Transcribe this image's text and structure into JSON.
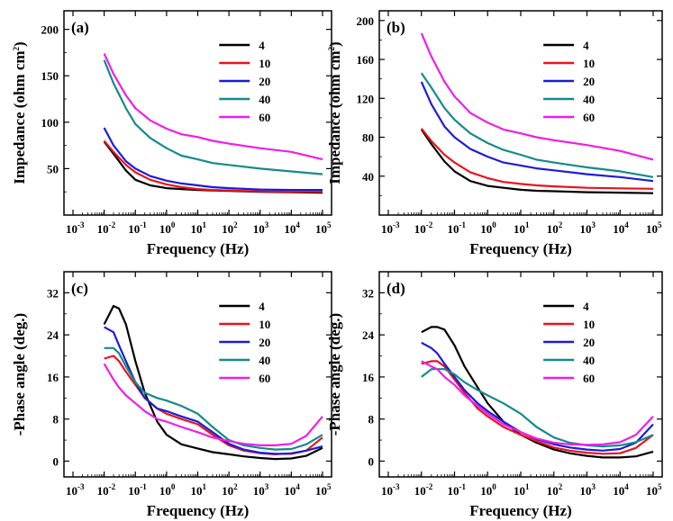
{
  "chart_data": [
    {
      "type": "line",
      "panel_label": "(a)",
      "xlabel": "Frequency (Hz)",
      "ylabel": "Impedance (ohm cm",
      "ylabel_sup": "2",
      "ylabel_close": ")",
      "x_scale": "log",
      "xlim": [
        0.001,
        100000
      ],
      "ylim": [
        0,
        220
      ],
      "x_ticks": [
        {
          "base": "10",
          "exp": "-3"
        },
        {
          "base": "10",
          "exp": "-2"
        },
        {
          "base": "10",
          "exp": "-1"
        },
        {
          "base": "10",
          "exp": "0"
        },
        {
          "base": "10",
          "exp": "1"
        },
        {
          "base": "10",
          "exp": "2"
        },
        {
          "base": "10",
          "exp": "3"
        },
        {
          "base": "10",
          "exp": "4"
        },
        {
          "base": "10",
          "exp": "5"
        }
      ],
      "y_ticks": [
        50,
        100,
        150,
        200
      ],
      "legend_position": "top-right",
      "x": [
        0.01,
        0.02,
        0.05,
        0.1,
        0.3,
        1,
        3,
        10,
        30,
        100,
        1000,
        10000,
        100000
      ],
      "series": [
        {
          "name": "4",
          "color": "#000000",
          "values": [
            79,
            66,
            48,
            38,
            32,
            29,
            28,
            27,
            26.5,
            26,
            25,
            24.5,
            24
          ]
        },
        {
          "name": "10",
          "color": "#e8141c",
          "values": [
            80,
            68,
            54,
            46,
            38,
            33,
            30,
            28,
            27,
            26.5,
            25.5,
            25,
            25
          ]
        },
        {
          "name": "20",
          "color": "#1c1cd6",
          "values": [
            94,
            75,
            58,
            50,
            42,
            37,
            34,
            32,
            30,
            29,
            27.5,
            27,
            27
          ]
        },
        {
          "name": "40",
          "color": "#158a8a",
          "values": [
            167,
            142,
            115,
            98,
            83,
            72,
            64,
            60,
            56,
            54,
            50,
            47,
            44
          ]
        },
        {
          "name": "60",
          "color": "#ee1ee8",
          "values": [
            174,
            152,
            129,
            115,
            102,
            93,
            87,
            84,
            80,
            77,
            72,
            68,
            60
          ]
        }
      ]
    },
    {
      "type": "line",
      "panel_label": "(b)",
      "xlabel": "Frequency (Hz)",
      "ylabel": "Impedance (ohm cm",
      "ylabel_sup": "2",
      "ylabel_close": ")",
      "x_scale": "log",
      "xlim": [
        0.001,
        100000
      ],
      "ylim": [
        0,
        210
      ],
      "x_ticks": [
        {
          "base": "10",
          "exp": "-3"
        },
        {
          "base": "10",
          "exp": "-2"
        },
        {
          "base": "10",
          "exp": "-1"
        },
        {
          "base": "10",
          "exp": "0"
        },
        {
          "base": "10",
          "exp": "1"
        },
        {
          "base": "10",
          "exp": "2"
        },
        {
          "base": "10",
          "exp": "3"
        },
        {
          "base": "10",
          "exp": "4"
        },
        {
          "base": "10",
          "exp": "5"
        }
      ],
      "y_ticks": [
        40,
        80,
        120,
        160,
        200
      ],
      "legend_position": "top-right",
      "x": [
        0.01,
        0.02,
        0.05,
        0.1,
        0.3,
        1,
        3,
        10,
        30,
        100,
        1000,
        10000,
        100000
      ],
      "series": [
        {
          "name": "4",
          "color": "#000000",
          "values": [
            88,
            73,
            55,
            45,
            35,
            30,
            28,
            26,
            25,
            24.5,
            23.5,
            23,
            22.5
          ]
        },
        {
          "name": "10",
          "color": "#e8141c",
          "values": [
            89,
            76,
            62,
            54,
            44,
            38,
            34,
            32,
            30.5,
            29.5,
            28,
            27.5,
            27
          ]
        },
        {
          "name": "20",
          "color": "#1c1cd6",
          "values": [
            137,
            114,
            91,
            80,
            68,
            60,
            54,
            51,
            48,
            46,
            42,
            39,
            35
          ]
        },
        {
          "name": "40",
          "color": "#158a8a",
          "values": [
            146,
            131,
            110,
            98,
            84,
            74,
            67,
            62,
            57,
            54,
            49,
            45,
            39
          ]
        },
        {
          "name": "60",
          "color": "#ee1ee8",
          "values": [
            187,
            163,
            137,
            122,
            105,
            95,
            88,
            84,
            80,
            77,
            72,
            66,
            57
          ]
        }
      ]
    },
    {
      "type": "line",
      "panel_label": "(c)",
      "xlabel": "Frequency (Hz)",
      "ylabel": "-Phase angle (deg.)",
      "x_scale": "log",
      "xlim": [
        0.001,
        100000
      ],
      "ylim": [
        -3,
        36
      ],
      "x_ticks": [
        {
          "base": "10",
          "exp": "-3"
        },
        {
          "base": "10",
          "exp": "-2"
        },
        {
          "base": "10",
          "exp": "-1"
        },
        {
          "base": "10",
          "exp": "0"
        },
        {
          "base": "10",
          "exp": "1"
        },
        {
          "base": "10",
          "exp": "2"
        },
        {
          "base": "10",
          "exp": "3"
        },
        {
          "base": "10",
          "exp": "4"
        },
        {
          "base": "10",
          "exp": "5"
        }
      ],
      "y_ticks": [
        0,
        8,
        16,
        24,
        32
      ],
      "legend_position": "top-right",
      "x": [
        0.01,
        0.02,
        0.03,
        0.05,
        0.1,
        0.2,
        0.5,
        1,
        3,
        10,
        30,
        100,
        300,
        1000,
        3000,
        10000,
        30000,
        100000
      ],
      "series": [
        {
          "name": "4",
          "color": "#000000",
          "values": [
            26,
            29.5,
            29,
            26,
            19,
            13,
            7.5,
            5,
            3.2,
            2.4,
            1.7,
            1.3,
            0.9,
            0.6,
            0.4,
            0.5,
            1.0,
            2.5
          ]
        },
        {
          "name": "10",
          "color": "#e8141c",
          "values": [
            19.5,
            20,
            19,
            17,
            14.5,
            12,
            10,
            9,
            8,
            7,
            5,
            3,
            2,
            1.5,
            1.3,
            1.5,
            2.0,
            4.5
          ]
        },
        {
          "name": "20",
          "color": "#1c1cd6",
          "values": [
            25.5,
            24.5,
            22,
            19,
            15,
            12,
            10,
            9.5,
            8.5,
            7.5,
            5.5,
            3.3,
            2.2,
            1.6,
            1.4,
            1.4,
            2.0,
            2.8
          ]
        },
        {
          "name": "40",
          "color": "#158a8a",
          "values": [
            21.5,
            21.5,
            20.5,
            18,
            15,
            13,
            12,
            11.5,
            10.5,
            9,
            6.5,
            4,
            3.0,
            2.5,
            2.2,
            2.3,
            3.2,
            5.0
          ]
        },
        {
          "name": "60",
          "color": "#ee1ee8",
          "values": [
            18.5,
            15.5,
            14,
            12.5,
            11,
            9.5,
            8,
            7.5,
            6.5,
            5.5,
            4.5,
            3.8,
            3.3,
            3.0,
            3.0,
            3.3,
            4.8,
            8.5
          ]
        }
      ]
    },
    {
      "type": "line",
      "panel_label": "(d)",
      "xlabel": "Frequency (Hz)",
      "ylabel": "-Phase angle (deg.)",
      "x_scale": "log",
      "xlim": [
        0.001,
        100000
      ],
      "ylim": [
        -3,
        36
      ],
      "x_ticks": [
        {
          "base": "10",
          "exp": "-3"
        },
        {
          "base": "10",
          "exp": "-2"
        },
        {
          "base": "10",
          "exp": "-1"
        },
        {
          "base": "10",
          "exp": "0"
        },
        {
          "base": "10",
          "exp": "1"
        },
        {
          "base": "10",
          "exp": "2"
        },
        {
          "base": "10",
          "exp": "3"
        },
        {
          "base": "10",
          "exp": "4"
        },
        {
          "base": "10",
          "exp": "5"
        }
      ],
      "y_ticks": [
        0,
        8,
        16,
        24,
        32
      ],
      "legend_position": "top-right",
      "x": [
        0.01,
        0.02,
        0.03,
        0.05,
        0.1,
        0.2,
        0.5,
        1,
        3,
        10,
        30,
        100,
        300,
        1000,
        3000,
        10000,
        30000,
        100000
      ],
      "series": [
        {
          "name": "4",
          "color": "#000000",
          "values": [
            24.5,
            25.5,
            25.5,
            25,
            22,
            18,
            14,
            11,
            7.5,
            5,
            3.5,
            2.2,
            1.5,
            1.0,
            0.7,
            0.7,
            0.9,
            1.8
          ]
        },
        {
          "name": "10",
          "color": "#e8141c",
          "values": [
            18.5,
            19,
            19,
            18,
            15.5,
            13,
            10,
            8.5,
            6.5,
            5,
            3.8,
            2.6,
            2.0,
            1.6,
            1.4,
            1.5,
            2.5,
            5.0
          ]
        },
        {
          "name": "20",
          "color": "#1c1cd6",
          "values": [
            22.5,
            21.5,
            20.5,
            18.5,
            16,
            13.5,
            11,
            9.5,
            7.5,
            5.5,
            4.2,
            3.2,
            2.6,
            2.2,
            2.0,
            2.3,
            3.5,
            7.0
          ]
        },
        {
          "name": "40",
          "color": "#158a8a",
          "values": [
            16,
            17.5,
            17.5,
            17.5,
            16.5,
            15,
            13.5,
            12.5,
            11,
            9,
            6.5,
            4.5,
            3.5,
            3.0,
            2.8,
            3.0,
            3.6,
            5.0
          ]
        },
        {
          "name": "60",
          "color": "#ee1ee8",
          "values": [
            19,
            18,
            17.5,
            16,
            14.5,
            12.5,
            10.5,
            9,
            7,
            5.5,
            4.3,
            3.5,
            3.2,
            3.1,
            3.2,
            3.6,
            5.0,
            8.5
          ]
        }
      ]
    }
  ]
}
